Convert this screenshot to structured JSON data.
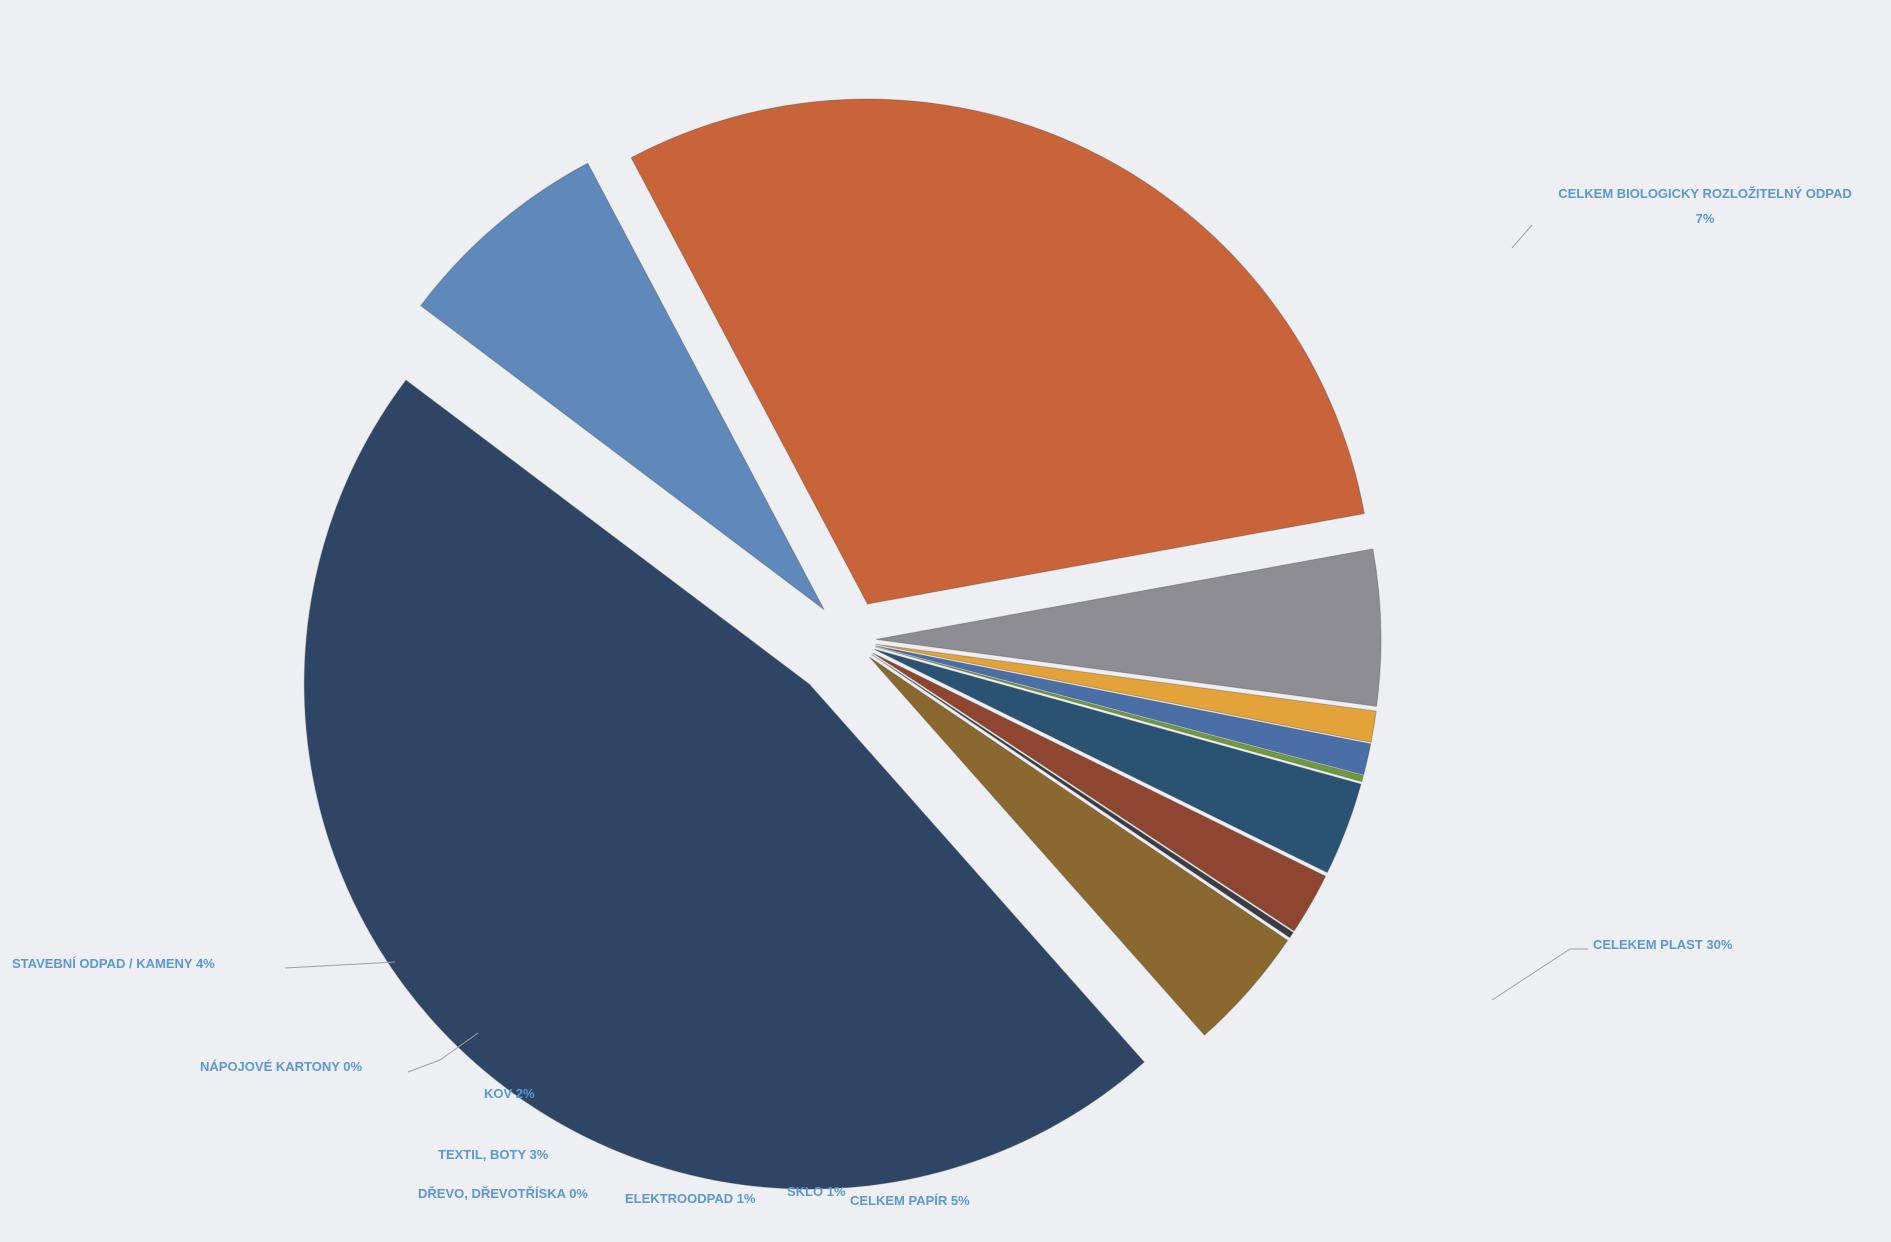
{
  "chart_data": {
    "type": "pie",
    "title": "",
    "exploded": true,
    "slices": [
      {
        "label": "CELKEM BIOLOGICKY ROZLOŽITELNÝ ODPAD",
        "value": 7,
        "pct_label": "7%",
        "color": "#5f88bb"
      },
      {
        "label": "CELEKEM PLAST",
        "value": 30,
        "pct_label": "30%",
        "color": "#c8633a"
      },
      {
        "label": "CELKEM PAPÍR",
        "value": 5,
        "pct_label": "5%",
        "color": "#8d8d93"
      },
      {
        "label": "SKLO",
        "value": 1,
        "pct_label": "1%",
        "color": "#e3a23a"
      },
      {
        "label": "ELEKTROODPAD",
        "value": 1,
        "pct_label": "1%",
        "color": "#4a6fa6"
      },
      {
        "label": "DŘEVO, DŘEVOTŘÍSKA",
        "value": 0,
        "pct_label": "0%",
        "color": "#6e9a3f"
      },
      {
        "label": "TEXTIL, BOTY",
        "value": 3,
        "pct_label": "3%",
        "color": "#2a5373"
      },
      {
        "label": "KOV",
        "value": 2,
        "pct_label": "2%",
        "color": "#8e4631"
      },
      {
        "label": "NÁPOJOVÉ KARTONY",
        "value": 0,
        "pct_label": "0%",
        "color": "#3b3b44"
      },
      {
        "label": "STAVEBNÍ ODPAD / KAMENY",
        "value": 4,
        "pct_label": "4%",
        "color": "#8a6830"
      },
      {
        "label": "",
        "value": 47,
        "pct_label": "",
        "color": "#2e4566"
      }
    ],
    "label_color": "#5b97d6",
    "leader_color": "#9aa0a8"
  }
}
